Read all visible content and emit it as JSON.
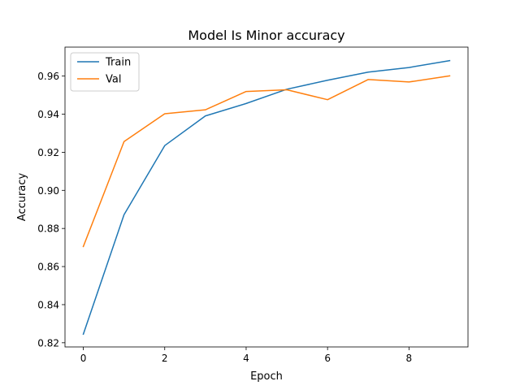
{
  "chart_data": {
    "type": "line",
    "title": "Model Is Minor accuracy",
    "xlabel": "Epoch",
    "ylabel": "Accuracy",
    "x": [
      0,
      1,
      2,
      3,
      4,
      5,
      6,
      7,
      8,
      9
    ],
    "xlim": [
      -0.45,
      9.45
    ],
    "ylim": [
      0.8178,
      0.9752
    ],
    "xticks": [
      0,
      2,
      4,
      6,
      8
    ],
    "xtick_labels": [
      "0",
      "2",
      "4",
      "6",
      "8"
    ],
    "yticks": [
      0.82,
      0.84,
      0.86,
      0.88,
      0.9,
      0.92,
      0.94,
      0.96
    ],
    "ytick_labels": [
      "0.82",
      "0.84",
      "0.86",
      "0.88",
      "0.90",
      "0.92",
      "0.94",
      "0.96"
    ],
    "grid": false,
    "legend_position": "top-left",
    "series": [
      {
        "name": "Train",
        "color": "#1f77b4",
        "values": [
          0.8245,
          0.8872,
          0.9235,
          0.9391,
          0.9456,
          0.9531,
          0.9578,
          0.9621,
          0.9645,
          0.9681
        ]
      },
      {
        "name": "Val",
        "color": "#ff7f0e",
        "values": [
          0.8705,
          0.9256,
          0.9402,
          0.9423,
          0.9519,
          0.9528,
          0.9476,
          0.9582,
          0.9569,
          0.9601
        ]
      }
    ]
  }
}
